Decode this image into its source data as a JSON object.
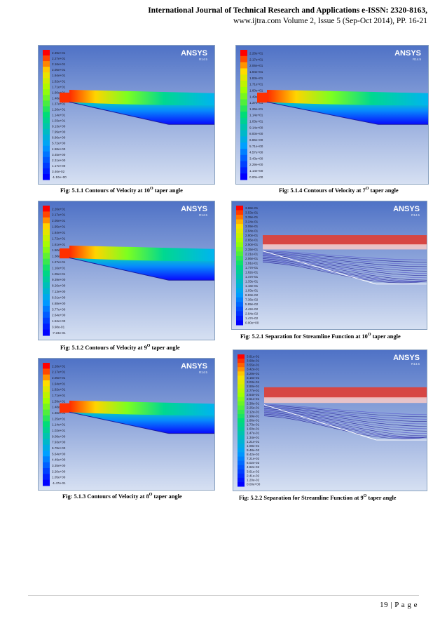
{
  "header": {
    "line1": "International Journal of Technical Research and Applications e-ISSN: 2320-8163,",
    "line2": "www.ijtra.com Volume 2, Issue 5 (Sep-Oct 2014), PP. 16-21"
  },
  "logo": {
    "name": "ANSYS",
    "version": "R14.5"
  },
  "figures": {
    "f511": {
      "caption_pre": "Fig: 5.1.1 Contours of Velocity at 10",
      "caption_sup": "O",
      "caption_post": " taper angle",
      "type": "velocity",
      "ticks": [
        "2.39e+01",
        "2.27e+01",
        "2.16e+01",
        "2.05e+01",
        "1.94e+01",
        "1.82e+01",
        "1.71e+01",
        "1.60e+01",
        "1.48e+01",
        "1.37e+01",
        "1.26e+01",
        "1.14e+01",
        "1.03e+01",
        "9.13e+00",
        "7.99e+00",
        "6.86e+00",
        "5.72e+00",
        "4.58e+00",
        "3.45e+00",
        "2.31e+00",
        "1.17e+00",
        "3.46e-02",
        "-1.10e+00"
      ]
    },
    "f514": {
      "caption_pre": "Fig: 5.1.4 Contours of Velocity at 7",
      "caption_sup": "O",
      "caption_post": " taper angle",
      "type": "velocity",
      "ticks": [
        "2.28e+01",
        "2.17e+01",
        "2.06e+01",
        "1.94e+01",
        "1.83e+01",
        "1.71e+01",
        "1.60e+01",
        "1.49e+01",
        "1.37e+01",
        "1.26e+01",
        "1.14e+01",
        "1.03e+01",
        "9.14e+00",
        "8.00e+00",
        "6.86e+00",
        "5.71e+00",
        "4.57e+00",
        "3.43e+00",
        "2.29e+00",
        "1.14e+00",
        "0.00e+00"
      ]
    },
    "f512": {
      "caption_pre": "Fig: 5.1.2 Contours of Velocity at 9",
      "caption_sup": "O",
      "caption_post": " taper angle",
      "type": "velocity",
      "ticks": [
        "2.26e+01",
        "2.17e+01",
        "2.05e+01",
        "1.95e+01",
        "1.84e+01",
        "1.72e+01",
        "1.61e+01",
        "1.50e+01",
        "1.38e+01",
        "1.27e+01",
        "1.16e+01",
        "1.05e+01",
        "9.39e+00",
        "8.26e+00",
        "7.13e+00",
        "6.01e+00",
        "4.88e+00",
        "3.77e+00",
        "2.64e+00",
        "1.52e+00",
        "3.98e-01",
        "-7.23e-01"
      ]
    },
    "f521": {
      "caption_pre": "Fig: 5.2.1 Separation for Streamline Function at 10",
      "caption_sup": "O",
      "caption_post": " taper angle",
      "type": "streamline",
      "ticks": [
        "3.68e-01",
        "3.53e-01",
        "3.39e-01",
        "3.24e-01",
        "3.09e-01",
        "2.94e-01",
        "2.80e-01",
        "2.65e-01",
        "2.50e-01",
        "2.35e-01",
        "2.21e-01",
        "2.06e-01",
        "1.91e-01",
        "1.77e-01",
        "1.62e-01",
        "1.47e-01",
        "1.33e-01",
        "1.18e-01",
        "1.03e-01",
        "8.83e-02",
        "7.36e-02",
        "5.89e-02",
        "4.42e-02",
        "2.94e-02",
        "1.47e-02",
        "0.00e+00"
      ]
    },
    "f513": {
      "caption_pre": "Fig: 5.1.3 Contours of Velocity at 8",
      "caption_sup": "O",
      "caption_post": " taper angle",
      "type": "velocity",
      "ticks": [
        "2.28e+01",
        "2.17e+01",
        "2.05e+01",
        "1.94e+01",
        "1.82e+01",
        "1.71e+01",
        "1.59e+01",
        "1.48e+01",
        "1.36e+01",
        "1.25e+01",
        "1.14e+01",
        "1.02e+01",
        "9.08e+00",
        "7.93e+00",
        "6.78e+00",
        "5.64e+00",
        "4.49e+00",
        "3.35e+00",
        "2.20e+00",
        "1.05e+00",
        "-1.47e-01"
      ]
    },
    "f522": {
      "caption_pre": "Fig: 5.2.2 Separation for Streamline Function at 9",
      "caption_sup": "O",
      "caption_post": " taper angle",
      "type": "streamline",
      "ticks": [
        "3.81e-01",
        "3.68e-01",
        "3.55e-01",
        "3.42e-01",
        "3.29e-01",
        "3.16e-01",
        "3.03e-01",
        "2.90e-01",
        "2.77e-01",
        "2.64e-01",
        "2.51e-01",
        "2.38e-01",
        "2.25e-01",
        "2.12e-01",
        "1.99e-01",
        "1.86e-01",
        "1.73e-01",
        "1.60e-01",
        "1.47e-01",
        "1.34e-01",
        "1.21e-01",
        "1.08e-01",
        "9.48e-02",
        "8.42e-02",
        "7.21e-02",
        "6.02e-02",
        "4.82e-02",
        "3.61e-02",
        "2.41e-02",
        "1.20e-02",
        "0.00e+00"
      ]
    }
  },
  "footer": {
    "page": "19 | P a g e"
  }
}
